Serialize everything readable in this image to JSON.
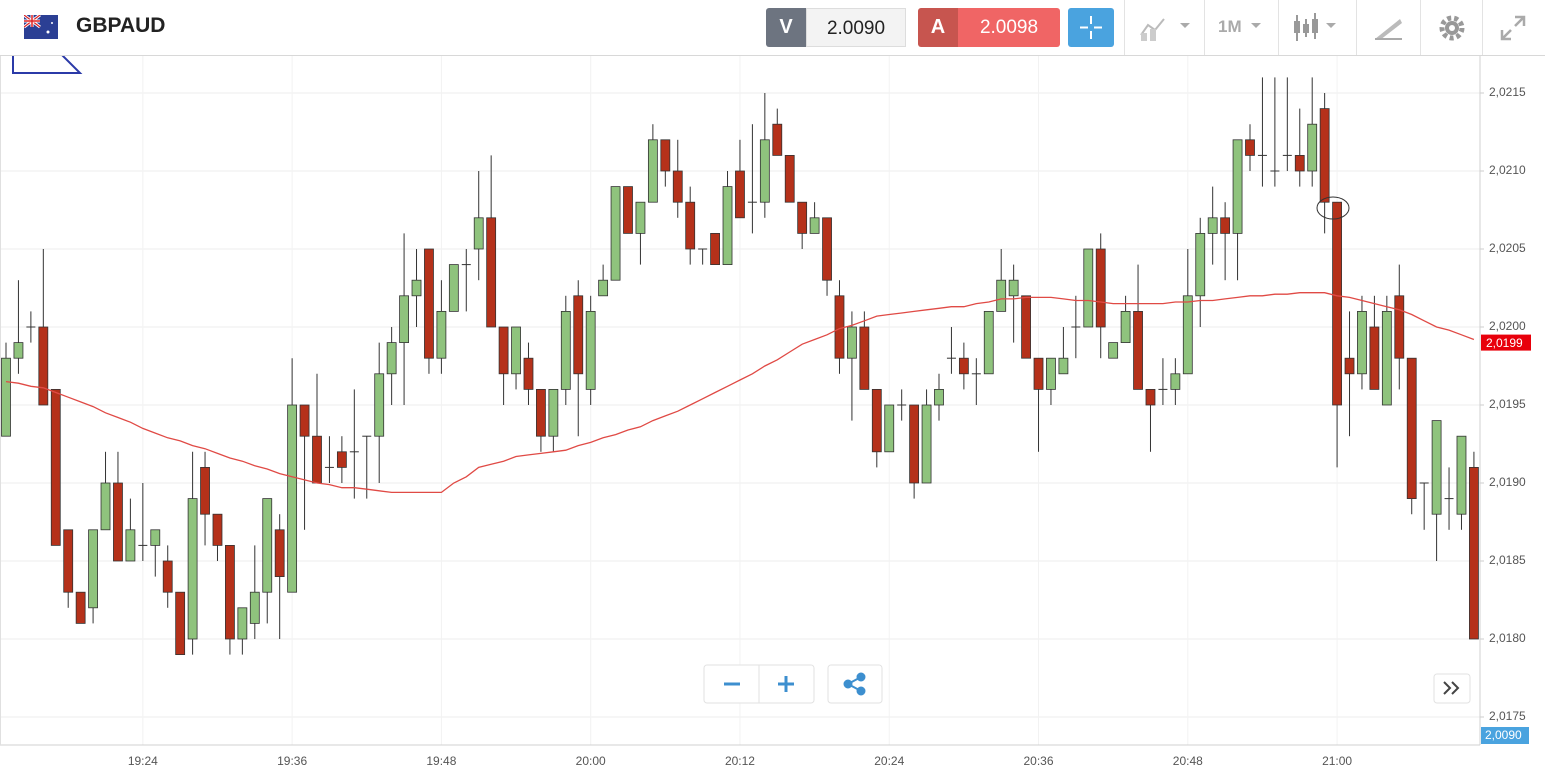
{
  "toolbar": {
    "symbol": "GBPAUD",
    "sell_label": "V",
    "sell_price": "2.0090",
    "buy_label": "A",
    "buy_price": "2.0098",
    "timeframe": "1M"
  },
  "chart_data": {
    "type": "candlestick",
    "categories": [
      null,
      null,
      null,
      null,
      null,
      null,
      null,
      null,
      null,
      null,
      null,
      "19:24",
      null,
      null,
      null,
      null,
      null,
      null,
      null,
      null,
      null,
      null,
      null,
      "19:36",
      null,
      null,
      null,
      null,
      null,
      null,
      null,
      null,
      null,
      null,
      null,
      "19:48",
      null,
      null,
      null,
      null,
      null,
      null,
      null,
      null,
      null,
      null,
      null,
      "20:00",
      null,
      null,
      null,
      null,
      null,
      null,
      null,
      null,
      null,
      null,
      null,
      "20:12",
      null,
      null,
      null,
      null,
      null,
      null,
      null,
      null,
      null,
      null,
      null,
      "20:24",
      null,
      null,
      null,
      null,
      null,
      null,
      null,
      null,
      null,
      null,
      null,
      "20:36",
      null,
      null,
      null,
      null,
      null,
      null,
      null,
      null,
      null,
      null,
      null,
      "20:48",
      null,
      null,
      null,
      null,
      null,
      null,
      null,
      null,
      null,
      null,
      null,
      "21:00",
      null,
      null,
      null,
      null,
      null,
      null,
      null,
      null,
      null,
      null,
      null
    ],
    "open": [
      2.0193,
      2.0198,
      2.02,
      2.02,
      2.0196,
      2.0187,
      2.0183,
      2.0182,
      2.0187,
      2.019,
      2.0185,
      2.0186,
      2.0186,
      2.0185,
      2.0183,
      2.018,
      2.0191,
      2.0188,
      2.0186,
      2.018,
      2.0181,
      2.0183,
      2.0187,
      2.0183,
      2.0195,
      2.0193,
      2.0191,
      2.0192,
      2.0192,
      2.0193,
      2.0193,
      2.0197,
      2.0199,
      2.0202,
      2.0205,
      2.0198,
      2.0201,
      2.0204,
      2.0205,
      2.0207,
      2.02,
      2.0197,
      2.0198,
      2.0196,
      2.0193,
      2.0196,
      2.0202,
      2.0196,
      2.0202,
      2.0203,
      2.0209,
      2.0206,
      2.0208,
      2.0212,
      2.021,
      2.0208,
      2.0205,
      2.0206,
      2.0204,
      2.021,
      2.0208,
      2.0208,
      2.0213,
      2.0211,
      2.0208,
      2.0206,
      2.0207,
      2.0202,
      2.0198,
      2.02,
      2.0196,
      2.0192,
      2.0195,
      2.0195,
      2.019,
      2.0195,
      2.0198,
      2.0198,
      2.0197,
      2.0197,
      2.0201,
      2.0202,
      2.0202,
      2.0198,
      2.0196,
      2.0197,
      2.02,
      2.02,
      2.0205,
      2.0198,
      2.0199,
      2.0201,
      2.0196,
      2.0196,
      2.0196,
      2.0197,
      2.0202,
      2.0206,
      2.0207,
      2.0206,
      2.0212,
      2.0211,
      2.021,
      2.0211,
      2.0211,
      2.021,
      2.0214,
      2.0208,
      2.0198,
      2.0197,
      2.02,
      2.0195,
      2.0202,
      2.0198,
      2.019,
      2.0188,
      2.0189,
      2.0188,
      2.0191
    ],
    "high": [
      2.0199,
      2.0203,
      2.0201,
      2.0205,
      2.0196,
      2.0187,
      2.0183,
      2.0187,
      2.0192,
      2.0192,
      2.0189,
      2.019,
      2.0187,
      2.0186,
      2.0183,
      2.0192,
      2.0192,
      2.0188,
      2.0186,
      2.0182,
      2.0186,
      2.0189,
      2.0188,
      2.0198,
      2.0195,
      2.0197,
      2.0193,
      2.0193,
      2.0196,
      2.0193,
      2.0199,
      2.02,
      2.0206,
      2.0205,
      2.0205,
      2.0203,
      2.0204,
      2.0205,
      2.021,
      2.0211,
      2.02,
      2.02,
      2.0199,
      2.0196,
      2.0196,
      2.0202,
      2.0203,
      2.0202,
      2.0204,
      2.0209,
      2.0209,
      2.0208,
      2.0213,
      2.0212,
      2.0212,
      2.0209,
      2.0205,
      2.0206,
      2.021,
      2.0212,
      2.0213,
      2.0215,
      2.0214,
      2.0211,
      2.0208,
      2.0208,
      2.0207,
      2.0203,
      2.0201,
      2.0201,
      2.0196,
      2.0195,
      2.0196,
      2.0195,
      2.0196,
      2.0197,
      2.02,
      2.0199,
      2.0198,
      2.0201,
      2.0205,
      2.0204,
      2.0202,
      2.0198,
      2.0198,
      2.02,
      2.0202,
      2.0205,
      2.0206,
      2.0199,
      2.0202,
      2.0204,
      2.0196,
      2.0198,
      2.0198,
      2.0205,
      2.0207,
      2.0209,
      2.0208,
      2.0212,
      2.0213,
      2.0216,
      2.0216,
      2.0216,
      2.0214,
      2.0216,
      2.0215,
      2.0208,
      2.0201,
      2.0202,
      2.0202,
      2.0202,
      2.0204,
      2.0198,
      2.019,
      2.0194,
      2.0191,
      2.0193,
      2.0192
    ],
    "low": [
      2.0193,
      2.0197,
      2.0199,
      2.0195,
      2.0186,
      2.0182,
      2.0181,
      2.0181,
      2.0187,
      2.0185,
      2.0185,
      2.0185,
      2.0184,
      2.0182,
      2.0179,
      2.0179,
      2.0186,
      2.0185,
      2.0179,
      2.0179,
      2.018,
      2.0181,
      2.018,
      2.0183,
      2.0187,
      2.019,
      2.019,
      2.019,
      2.0189,
      2.0189,
      2.019,
      2.0195,
      2.0195,
      2.02,
      2.0197,
      2.0197,
      2.0201,
      2.0201,
      2.0203,
      2.02,
      2.0195,
      2.0196,
      2.0195,
      2.0192,
      2.0192,
      2.0195,
      2.0193,
      2.0195,
      2.0202,
      2.0203,
      2.0206,
      2.0204,
      2.0208,
      2.0209,
      2.0207,
      2.0204,
      2.0204,
      2.0204,
      2.0204,
      2.0207,
      2.0206,
      2.0207,
      2.0211,
      2.0208,
      2.0205,
      2.0206,
      2.0202,
      2.0197,
      2.0194,
      2.0196,
      2.0191,
      2.0192,
      2.0194,
      2.0189,
      2.019,
      2.0194,
      2.0197,
      2.0196,
      2.0195,
      2.0197,
      2.0201,
      2.0199,
      2.0198,
      2.0192,
      2.0195,
      2.0197,
      2.0198,
      2.02,
      2.0198,
      2.0198,
      2.0199,
      2.0196,
      2.0192,
      2.0195,
      2.0195,
      2.0197,
      2.02,
      2.0204,
      2.0203,
      2.0203,
      2.021,
      2.0209,
      2.0209,
      2.021,
      2.0209,
      2.0209,
      2.0206,
      2.0191,
      2.0193,
      2.0196,
      2.0196,
      2.0195,
      2.0196,
      2.0188,
      2.0187,
      2.0185,
      2.0187,
      2.0187,
      2.018
    ],
    "close": [
      2.0198,
      2.0199,
      2.02,
      2.0195,
      2.0186,
      2.0183,
      2.0181,
      2.0187,
      2.019,
      2.0185,
      2.0187,
      2.0186,
      2.0187,
      2.0183,
      2.0179,
      2.0189,
      2.0188,
      2.0186,
      2.018,
      2.0182,
      2.0183,
      2.0189,
      2.0184,
      2.0195,
      2.0193,
      2.019,
      2.0191,
      2.0191,
      2.0192,
      2.0193,
      2.0197,
      2.0199,
      2.0202,
      2.0203,
      2.0198,
      2.0201,
      2.0204,
      2.0204,
      2.0207,
      2.02,
      2.0197,
      2.02,
      2.0196,
      2.0193,
      2.0196,
      2.0201,
      2.0197,
      2.0201,
      2.0203,
      2.0209,
      2.0206,
      2.0208,
      2.0212,
      2.021,
      2.0208,
      2.0205,
      2.0205,
      2.0204,
      2.0209,
      2.0207,
      2.0208,
      2.0212,
      2.0211,
      2.0208,
      2.0206,
      2.0207,
      2.0203,
      2.0198,
      2.02,
      2.0196,
      2.0192,
      2.0195,
      2.0195,
      2.019,
      2.0195,
      2.0196,
      2.0198,
      2.0197,
      2.0197,
      2.0201,
      2.0203,
      2.0203,
      2.0198,
      2.0196,
      2.0198,
      2.0198,
      2.02,
      2.0205,
      2.02,
      2.0199,
      2.0201,
      2.0196,
      2.0195,
      2.0196,
      2.0197,
      2.0202,
      2.0206,
      2.0207,
      2.0206,
      2.0212,
      2.0211,
      2.0211,
      2.021,
      2.0211,
      2.021,
      2.0213,
      2.0208,
      2.0195,
      2.0197,
      2.0201,
      2.0196,
      2.0201,
      2.0198,
      2.0189,
      2.019,
      2.0194,
      2.0189,
      2.0193,
      2.018
    ],
    "up_color": "#8fc37d",
    "down_color": "#b5311a",
    "ma": {
      "color": "#e04a45",
      "values": [
        2.01965,
        2.01964,
        2.01962,
        2.01961,
        2.01958,
        2.01955,
        2.01952,
        2.01949,
        2.01945,
        2.01942,
        2.01939,
        2.01935,
        2.01932,
        2.01929,
        2.01927,
        2.01924,
        2.01922,
        2.01919,
        2.01916,
        2.01914,
        2.01911,
        2.01909,
        2.01906,
        2.01904,
        2.01902,
        2.019,
        2.01899,
        2.01897,
        2.01897,
        2.01896,
        2.01895,
        2.01894,
        2.01894,
        2.01894,
        2.01894,
        2.01894,
        2.019,
        2.01904,
        2.0191,
        2.01912,
        2.01914,
        2.01917,
        2.01918,
        2.01919,
        2.0192,
        2.01921,
        2.01924,
        2.01926,
        2.01929,
        2.01931,
        2.01934,
        2.01936,
        2.0194,
        2.01943,
        2.01946,
        2.0195,
        2.01954,
        2.01958,
        2.01962,
        2.01966,
        2.0197,
        2.01975,
        2.01979,
        2.01984,
        2.01989,
        2.01992,
        2.01995,
        2.01999,
        2.02001,
        2.02004,
        2.02007,
        2.02008,
        2.02009,
        2.0201,
        2.02011,
        2.02012,
        2.02013,
        2.02013,
        2.02015,
        2.02016,
        2.02018,
        2.02018,
        2.02019,
        2.02019,
        2.02019,
        2.02018,
        2.02017,
        2.02017,
        2.02016,
        2.02015,
        2.02015,
        2.02015,
        2.02015,
        2.02015,
        2.02016,
        2.02016,
        2.02017,
        2.02017,
        2.02018,
        2.02019,
        2.0202,
        2.0202,
        2.02021,
        2.02021,
        2.02022,
        2.02022,
        2.02022,
        2.0202,
        2.02019,
        2.02017,
        2.02015,
        2.02013,
        2.02011,
        2.02008,
        2.02004,
        2.02,
        2.01998,
        2.01995,
        2.01992
      ]
    },
    "ylim": [
      2.0173,
      2.0217
    ],
    "yticks": [
      {
        "value": 2.0175,
        "label": "2,0175"
      },
      {
        "value": 2.018,
        "label": "2,0180"
      },
      {
        "value": 2.0185,
        "label": "2,0185"
      },
      {
        "value": 2.019,
        "label": "2,0190"
      },
      {
        "value": 2.0195,
        "label": "2,0195"
      },
      {
        "value": 2.02,
        "label": "2,0200"
      },
      {
        "value": 2.0205,
        "label": "2,0205"
      },
      {
        "value": 2.021,
        "label": "2,0210"
      },
      {
        "value": 2.0215,
        "label": "2,0215"
      }
    ],
    "grid": true,
    "price_tags": [
      {
        "value": 2.0199,
        "label": "2,0199",
        "color": "#e8000b"
      }
    ],
    "bid_tag_label": "2,0090",
    "bid_tag_color": "#4aa3df"
  }
}
